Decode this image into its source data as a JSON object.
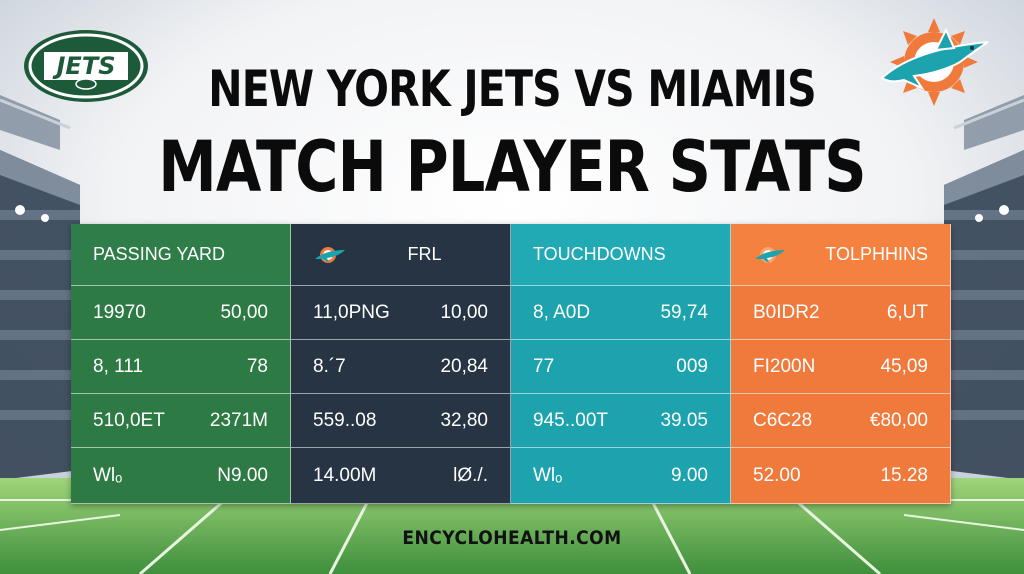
{
  "title": {
    "line1": "NEW YORK JETS VS MIAMIS",
    "line2": "MATCH PLAYER STATS"
  },
  "logos": {
    "jets": {
      "text": "JETS",
      "color": "#1d5a3a"
    },
    "dolphins": {
      "colors": [
        "#1da3ad",
        "#f07a3c"
      ]
    }
  },
  "columns": [
    {
      "color": "#2e7a44",
      "header": {
        "label": "PASSING YARD",
        "icon": null
      },
      "rows": [
        [
          "19970",
          "50,00"
        ],
        [
          "8, 111",
          "78"
        ],
        [
          "510,0ET",
          "2371M"
        ],
        [
          "Wlₒ",
          "N9.00"
        ]
      ]
    },
    {
      "color": "#263443",
      "header": {
        "label": "FRL",
        "icon": "dolphin-icon"
      },
      "rows": [
        [
          "11,0PNG",
          "10,00"
        ],
        [
          "8.´7",
          "20,84"
        ],
        [
          "559..08",
          "32,80"
        ],
        [
          "14.00M",
          "lØ./."
        ]
      ]
    },
    {
      "color": "#1da3ad",
      "header": {
        "label": "TOUCHDOWNS",
        "icon": null
      },
      "rows": [
        [
          "8, A0D",
          "59,74"
        ],
        [
          "77",
          "009"
        ],
        [
          "945..00T",
          "39.05"
        ],
        [
          "Wlₒ",
          "9.00"
        ]
      ]
    },
    {
      "color": "#f07a3c",
      "header": {
        "label": "TOLPHHINS",
        "icon": "dolphin-icon"
      },
      "rows": [
        [
          "B0IDR2",
          "6,UT"
        ],
        [
          "FI200N",
          "45,09"
        ],
        [
          "C6C28",
          "€80,00"
        ],
        [
          "52.00",
          "15.28"
        ]
      ]
    }
  ],
  "footer": "ENCYCLOHEALTH.COM"
}
